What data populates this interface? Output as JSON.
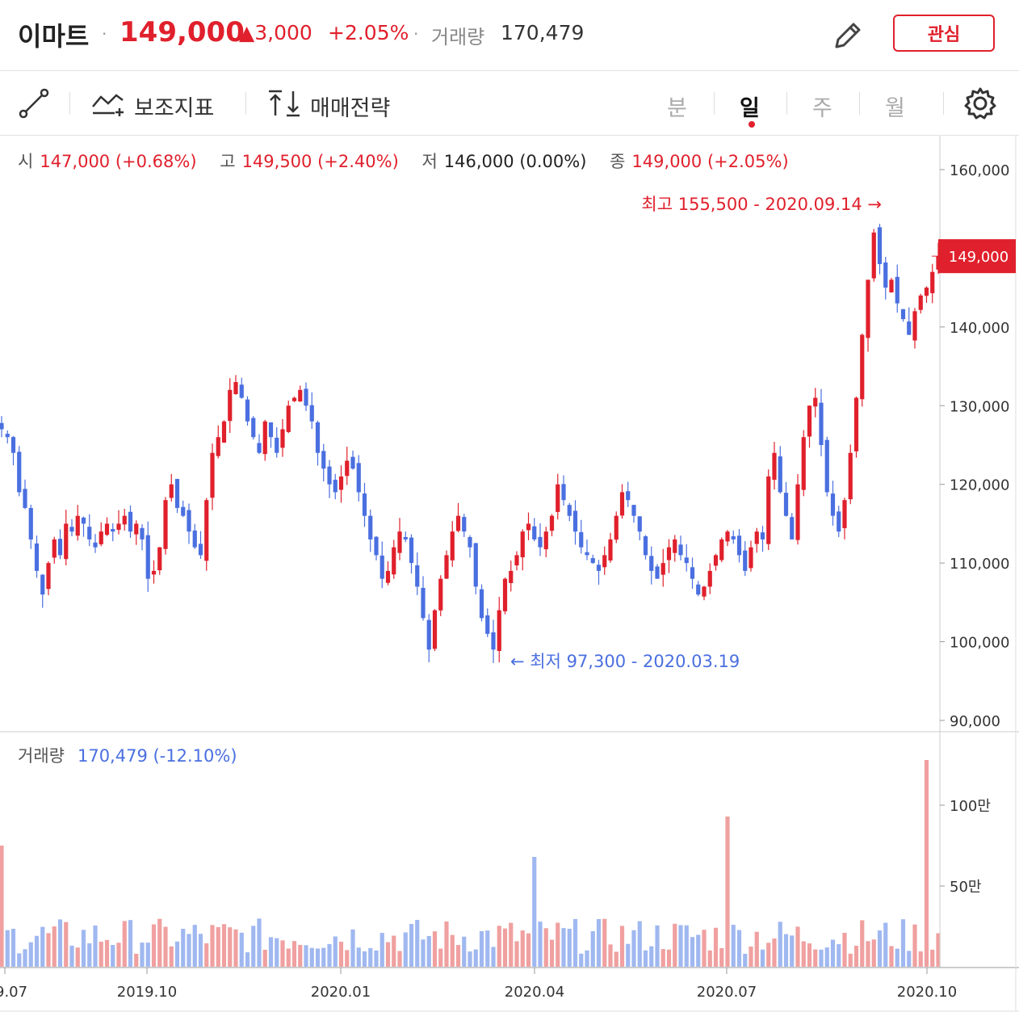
{
  "header": {
    "stock_name": "이마트",
    "price": "149,000",
    "change": "▲3,000",
    "change_pct": "+2.05%",
    "volume_label": "거래량",
    "volume": "170,479",
    "edit_icon": "pencil-icon",
    "watch_button": "관심"
  },
  "toolbar": {
    "draw_icon": "line-draw-icon",
    "indicator_icon": "indicator-icon",
    "indicator_label": "보조지표",
    "strategy_icon": "buy-sell-arrows-icon",
    "strategy_label": "매매전략",
    "periods": [
      "분",
      "일",
      "주",
      "월"
    ],
    "active_period": "일",
    "settings_icon": "gear-icon"
  },
  "ohlc": {
    "open_label": "시",
    "open": "147,000 (+0.68%)",
    "high_label": "고",
    "high": "149,500 (+2.40%)",
    "low_label": "저",
    "low": "146,000 (0.00%)",
    "close_label": "종",
    "close": "149,000 (+2.05%)"
  },
  "colors": {
    "up": "#e0202c",
    "down": "#4a6fe0",
    "up_volume": "#f0a0a0",
    "down_volume": "#a0b8f0",
    "flat": "#222222"
  },
  "chart_data": [
    {
      "type": "candlestick",
      "y_ticks": [
        "160,000",
        "140,000",
        "130,000",
        "120,000",
        "110,000",
        "100,000",
        "90,000"
      ],
      "ylim": [
        90000,
        160000
      ],
      "x_ticks": [
        "9.07",
        "2019.10",
        "2020.01",
        "2020.04",
        "2020.07",
        "2020.10"
      ],
      "current_price_label": "149,000",
      "current_price": 149000,
      "annotations": [
        {
          "text": "최고 155,500 - 2020.09.14 →",
          "value": 155500
        },
        {
          "text": "← 최저 97,300 - 2020.03.19",
          "value": 97300
        }
      ],
      "close_series": [
        127000,
        126000,
        124000,
        119000,
        117000,
        113000,
        109000,
        106000,
        110000,
        113000,
        111000,
        115000,
        114000,
        116000,
        115000,
        113000,
        112000,
        114000,
        115000,
        114000,
        115000,
        116000,
        114000,
        115000,
        113000,
        108000,
        109000,
        112000,
        118000,
        120000,
        117000,
        116000,
        114000,
        112000,
        111000,
        118000,
        124000,
        126000,
        128000,
        132000,
        133000,
        131000,
        128000,
        126000,
        124000,
        128000,
        126000,
        124000,
        127000,
        130000,
        131000,
        132000,
        130000,
        128000,
        124000,
        122000,
        120000,
        119000,
        121000,
        123000,
        122000,
        119000,
        116000,
        113000,
        111000,
        108000,
        109000,
        112000,
        114000,
        113000,
        110000,
        107000,
        103000,
        99000,
        104000,
        108000,
        111000,
        114000,
        116000,
        114000,
        112000,
        107000,
        103000,
        101000,
        99000,
        104000,
        108000,
        109000,
        111000,
        114000,
        115000,
        113000,
        112000,
        114000,
        116000,
        120000,
        118000,
        116000,
        114000,
        112000,
        111000,
        110000,
        109000,
        111000,
        113000,
        116000,
        119000,
        118000,
        116000,
        114000,
        111000,
        109000,
        108000,
        110000,
        112000,
        113000,
        111000,
        110000,
        108000,
        106000,
        107000,
        109000,
        111000,
        113000,
        114000,
        113000,
        111000,
        109000,
        112000,
        114000,
        113000,
        121000,
        124000,
        119000,
        116000,
        113000,
        120000,
        126000,
        130000,
        131000,
        125000,
        119000,
        116000,
        114000,
        118000,
        124000,
        131000,
        139000,
        146000,
        152000,
        148000,
        145000,
        146000,
        143000,
        141000,
        139000,
        142000,
        144000,
        145000,
        147000,
        149000
      ]
    },
    {
      "type": "bar",
      "label": "거래량",
      "current": "170,479 (-12.10%)",
      "y_ticks": [
        "100만",
        "50만"
      ],
      "ylim": [
        0,
        1000000
      ],
      "peaks": [
        {
          "x_tick": "9.07",
          "value": 750000
        },
        {
          "x_tick": "2020.04",
          "value": 680000
        },
        {
          "x_tick": "2020.07",
          "value": 930000
        },
        {
          "x_tick": "2020.10",
          "value": 1280000
        }
      ]
    }
  ]
}
